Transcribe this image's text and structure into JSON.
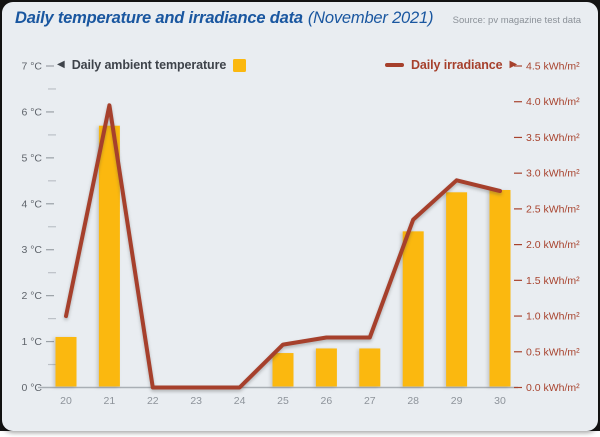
{
  "header": {
    "title": "Daily temperature and irradiance data",
    "title_suffix": "(November 2021)",
    "source": "Source: pv magazine test data"
  },
  "legend": {
    "temperature_arrow": "◀",
    "temperature_label": "Daily ambient temperature",
    "irradiance_label": "Daily irradiance",
    "irradiance_arrow": "▶"
  },
  "colors": {
    "frame": "#141414",
    "background": "#e9edf1",
    "bar": "#fbb80f",
    "line": "#a6402c",
    "title": "#1a57a0",
    "legend_text": "#3e434a",
    "left_axis_text": "#5f646b",
    "right_axis_text": "#a8432e",
    "x_axis_text": "#8d939a",
    "axis_line": "#a9afb5",
    "major_tick": "#9aa0a6",
    "minor_tick": "#bcc1c7",
    "source_text": "#8b9198"
  },
  "chart_data": {
    "type": "bar+line",
    "title": "Daily temperature and irradiance data (November 2021)",
    "categories": [
      "20",
      "21",
      "22",
      "23",
      "24",
      "25",
      "26",
      "27",
      "28",
      "29",
      "30"
    ],
    "series": [
      {
        "name": "Daily ambient temperature",
        "type": "bar",
        "axis": "left",
        "unit": "°C",
        "values": [
          1.1,
          5.7,
          0,
          0,
          0,
          0.75,
          0.85,
          0.85,
          3.4,
          4.25,
          4.3
        ]
      },
      {
        "name": "Daily irradiance",
        "type": "line",
        "axis": "right",
        "unit": "kWh/m²",
        "values": [
          1.0,
          3.95,
          0,
          0,
          0,
          0.6,
          0.7,
          0.7,
          2.35,
          2.9,
          2.75
        ]
      }
    ],
    "left_axis": {
      "min": 0,
      "max": 7,
      "step": 1,
      "minor_step": 0.5,
      "ticks": [
        "0 °C",
        "1 °C",
        "2 °C",
        "3 °C",
        "4 °C",
        "5 °C",
        "6 °C",
        "7 °C"
      ]
    },
    "right_axis": {
      "min": 0,
      "max": 4.5,
      "step": 0.5,
      "ticks": [
        "0.0 kWh/m²",
        "0.5 kWh/m²",
        "1.0 kWh/m²",
        "1.5 kWh/m²",
        "2.0 kWh/m²",
        "2.5 kWh/m²",
        "3.0 kWh/m²",
        "3.5 kWh/m²",
        "4.0 kWh/m²",
        "4.5 kWh/m²"
      ]
    },
    "grid": false,
    "legend_position": "top"
  }
}
